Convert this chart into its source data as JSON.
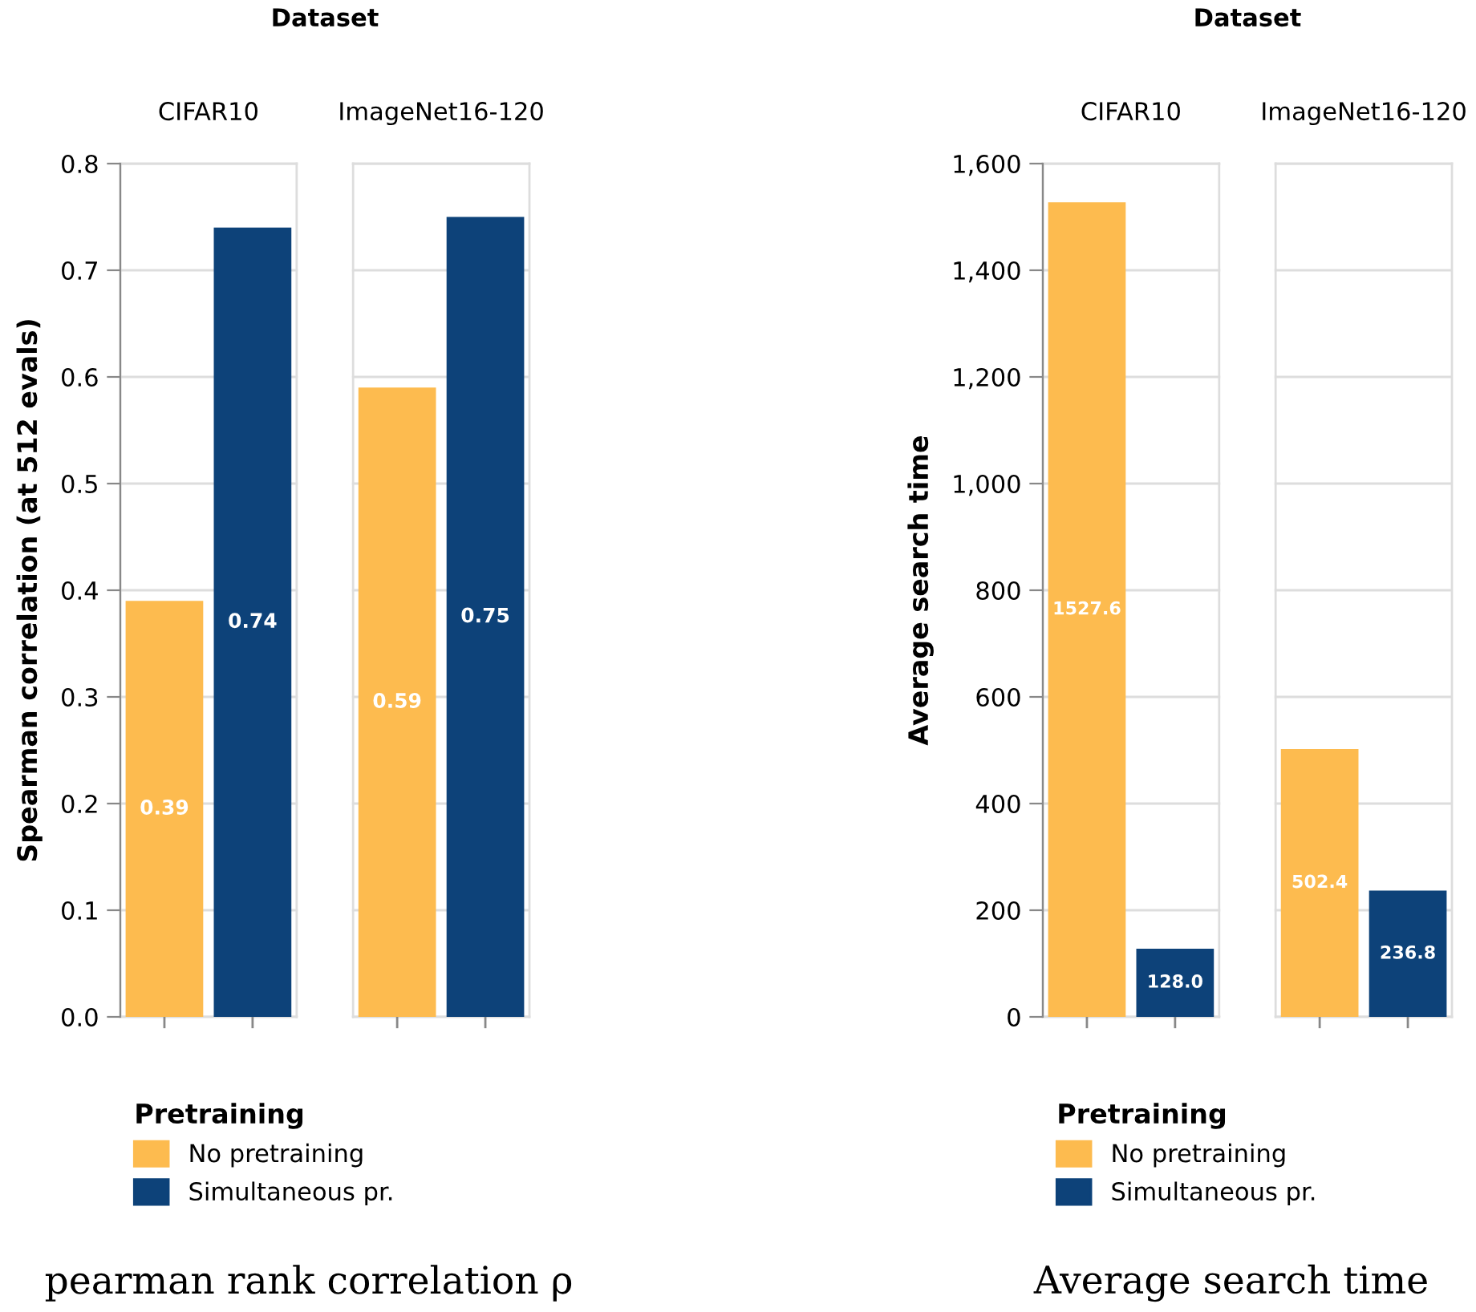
{
  "chart_data": [
    {
      "type": "bar",
      "title": "Dataset",
      "categories": [
        "CIFAR10",
        "ImageNet16-120"
      ],
      "ylabel": "Spearman correlation (at 512 evals)",
      "ylim": [
        0,
        0.8
      ],
      "yticks": [
        {
          "value": 0,
          "label": "0.0"
        },
        0.1,
        0.2,
        0.3,
        0.4,
        0.5,
        0.6,
        0.7,
        0.8
      ],
      "grid": "y",
      "legend": "bottom",
      "legend_title": "Pretraining",
      "data_labels": true,
      "series": [
        {
          "name": "No pretraining",
          "color": "#fdbb4f",
          "values": [
            0.39,
            0.59
          ]
        },
        {
          "name": "Simultaneous pr.",
          "color": "#0d4279",
          "values": [
            0.74,
            0.75
          ]
        }
      ],
      "annotations": [
        "pearman rank correlation ρ"
      ]
    },
    {
      "type": "bar",
      "title": "Dataset",
      "categories": [
        "CIFAR10",
        "ImageNet16-120"
      ],
      "ylabel": "Average search time",
      "ylim": [
        0,
        1600
      ],
      "yticks": [
        {
          "value": 0,
          "label": "0"
        },
        {
          "value": 200,
          "label": "200"
        },
        {
          "value": 400,
          "label": "400"
        },
        {
          "value": 600,
          "label": "600"
        },
        {
          "value": 800,
          "label": "800"
        },
        {
          "value": 1000,
          "label": "1,000"
        },
        {
          "value": 1200,
          "label": "1,200"
        },
        {
          "value": 1400,
          "label": "1,400"
        },
        {
          "value": 1600,
          "label": "1,600"
        }
      ],
      "grid": "y",
      "legend": "bottom",
      "legend_title": "Pretraining",
      "series": [
        {
          "name": "No pretraining",
          "color": "#fdbb4f",
          "values": [
            1527.6,
            502.4
          ],
          "value_labels": [
            "1527.6",
            "502.4"
          ]
        },
        {
          "name": "Simultaneous pr.",
          "color": "#0d4279",
          "values": [
            128.0,
            236.8
          ],
          "value_labels": [
            "128.0",
            "236.8"
          ]
        }
      ],
      "annotations": [
        "Average search time"
      ]
    }
  ]
}
